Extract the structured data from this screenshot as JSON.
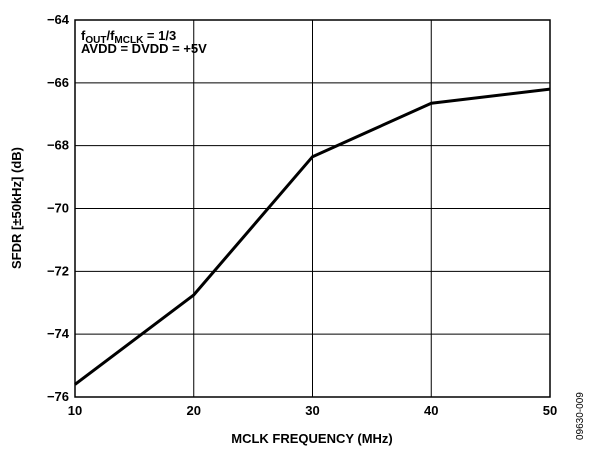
{
  "chart_data": {
    "type": "line",
    "xlabel": "MCLK FREQUENCY (MHz)",
    "ylabel": "SFDR [±50kHz] (dB)",
    "xlim": [
      10,
      50
    ],
    "ylim": [
      -76,
      -64
    ],
    "x_ticks": [
      "10",
      "20",
      "30",
      "40",
      "50"
    ],
    "y_ticks": [
      "−64",
      "−66",
      "−68",
      "−70",
      "−72",
      "−74",
      "−76"
    ],
    "grid": true,
    "series": [
      {
        "x": [
          10,
          20,
          30,
          40,
          50
        ],
        "y": [
          -75.6,
          -72.75,
          -68.35,
          -66.65,
          -66.2
        ]
      }
    ],
    "annotations": {
      "line1": {
        "f1": "f",
        "sub1": "OUT",
        "slash": "/f",
        "sub2": "MCLK",
        "tail": " = 1/3"
      },
      "line2": "AVDD = DVDD = +5V"
    },
    "figure_id": "09630-009"
  }
}
